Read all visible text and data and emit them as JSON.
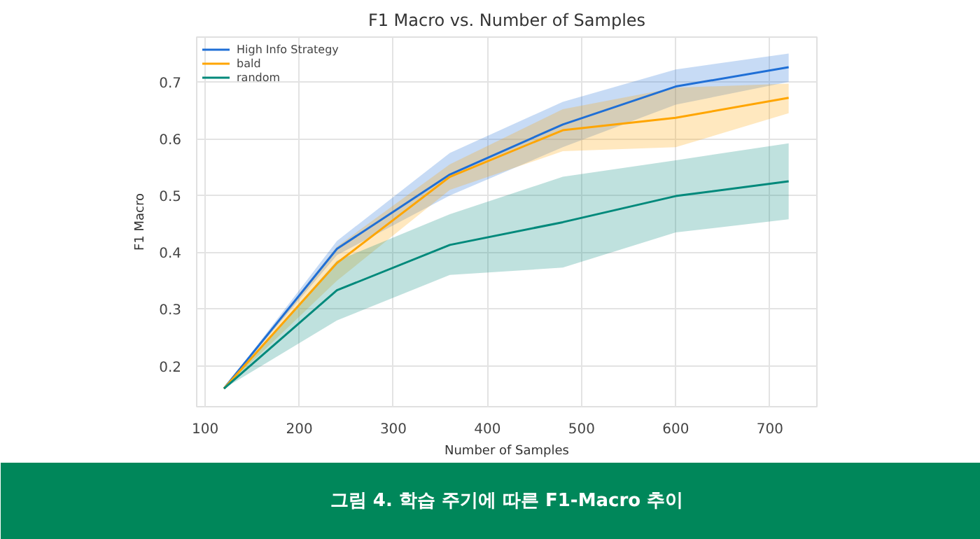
{
  "chart_data": {
    "type": "line",
    "title": "F1 Macro vs. Number of Samples",
    "xlabel": "Number of Samples",
    "ylabel": "F1 Macro",
    "annotations": [
      "그림 4. 학습 주기에 따른 F1-Macro 추이"
    ],
    "x": [
      120,
      240,
      360,
      480,
      600,
      720
    ],
    "series": [
      {
        "name": "High Info Strategy",
        "color": "#1f6fd6",
        "values": [
          0.16,
          0.406,
          0.537,
          0.625,
          0.692,
          0.726
        ],
        "lower": [
          0.16,
          0.395,
          0.5,
          0.585,
          0.66,
          0.7
        ],
        "upper": [
          0.16,
          0.42,
          0.575,
          0.665,
          0.722,
          0.75
        ]
      },
      {
        "name": "bald",
        "color": "#ffa500",
        "values": [
          0.16,
          0.381,
          0.533,
          0.615,
          0.637,
          0.672
        ],
        "lower": [
          0.16,
          0.35,
          0.51,
          0.578,
          0.585,
          0.645
        ],
        "upper": [
          0.16,
          0.41,
          0.555,
          0.652,
          0.69,
          0.697
        ]
      },
      {
        "name": "random",
        "color": "#00897b",
        "values": [
          0.16,
          0.333,
          0.413,
          0.453,
          0.499,
          0.525
        ],
        "lower": [
          0.16,
          0.28,
          0.36,
          0.373,
          0.435,
          0.458
        ],
        "upper": [
          0.16,
          0.385,
          0.467,
          0.533,
          0.562,
          0.592
        ]
      }
    ],
    "xlim": [
      91,
      750
    ],
    "ylim": [
      0.128,
      0.779
    ],
    "xticks": [
      100,
      200,
      300,
      400,
      500,
      600,
      700
    ],
    "yticks": [
      0.2,
      0.3,
      0.4,
      0.5,
      0.6,
      0.7
    ],
    "grid": true,
    "legend": "top left",
    "marker": "none",
    "line_style": "solid"
  }
}
